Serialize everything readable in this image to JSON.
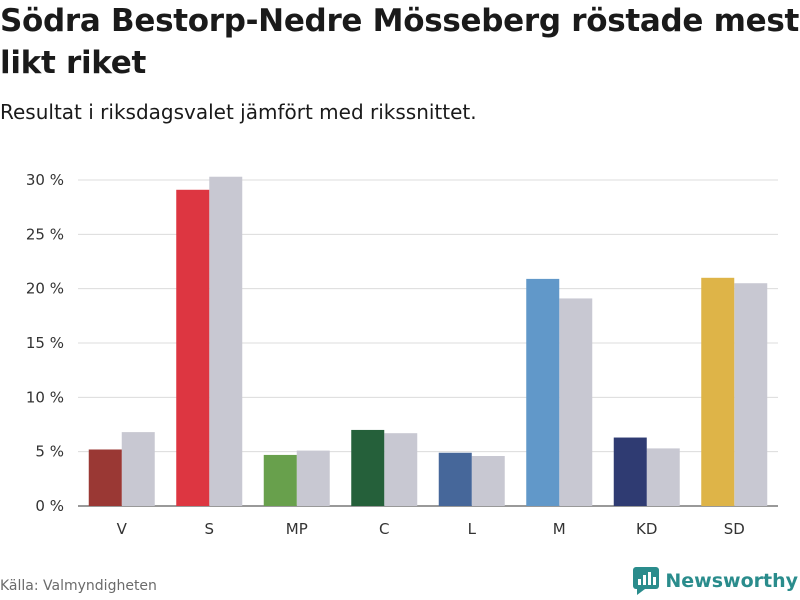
{
  "header": {
    "title": "Södra Bestorp-Nedre Mösseberg röstade mest likt riket",
    "subtitle": "Resultat i riksdagsvalet jämfört med rikssnittet."
  },
  "footer": {
    "source": "Källa: Valmyndigheten",
    "brand": "Newsworthy",
    "brand_icon": "newsworthy-logo-icon",
    "brand_color": "#2a8c8c"
  },
  "chart_data": {
    "type": "bar",
    "categories": [
      "V",
      "S",
      "MP",
      "C",
      "L",
      "M",
      "KD",
      "SD"
    ],
    "series": [
      {
        "values": [
          5.2,
          29.1,
          4.7,
          7.0,
          4.9,
          20.9,
          6.3,
          21.0
        ],
        "colors": [
          "#9a3834",
          "#dd3641",
          "#68a04c",
          "#25603a",
          "#46679a",
          "#6198c9",
          "#2f3b72",
          "#deb448"
        ]
      },
      {
        "values": [
          6.8,
          30.3,
          5.1,
          6.7,
          4.6,
          19.1,
          5.3,
          20.5
        ],
        "color": "#c8c8d2"
      }
    ],
    "ylim": [
      0,
      30
    ],
    "yticks": [
      0,
      5,
      10,
      15,
      20,
      25,
      30
    ],
    "ytick_suffix": " %",
    "grid": true,
    "legend": false
  }
}
